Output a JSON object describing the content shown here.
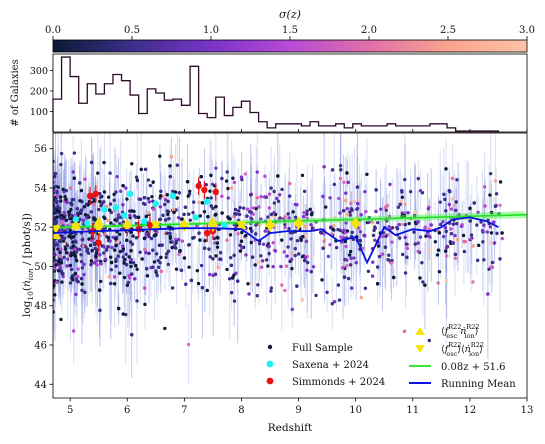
{
  "chart_data": [
    {
      "type": "colorbar",
      "label": "σ(z)",
      "range": [
        0.0,
        3.0
      ],
      "ticks": [
        0.0,
        0.5,
        1.0,
        1.5,
        2.0,
        2.5,
        3.0
      ],
      "tick_labels": [
        "0.0",
        "0.5",
        "1.0",
        "1.5",
        "2.0",
        "2.5",
        "3.0"
      ],
      "colormap": [
        "#0b1a36",
        "#3b2f8a",
        "#7a33c8",
        "#b84bd6",
        "#e06fa9",
        "#f9a48d",
        "#fcc3a8"
      ]
    },
    {
      "type": "histogram",
      "ylabel": "# of Galaxies",
      "yticks": [
        100,
        200,
        300
      ],
      "ylim": [
        0,
        380
      ],
      "xlim": [
        4.7,
        13.0
      ],
      "bin_width": 0.15,
      "x_start": 4.7,
      "counts": [
        160,
        365,
        270,
        140,
        235,
        185,
        235,
        280,
        250,
        180,
        90,
        210,
        190,
        155,
        160,
        130,
        320,
        90,
        70,
        170,
        80,
        120,
        150,
        95,
        50,
        20,
        40,
        40,
        40,
        30,
        50,
        30,
        30,
        40,
        20,
        40,
        30,
        30,
        30,
        40,
        30,
        30,
        30,
        30,
        40,
        40,
        20,
        5,
        5,
        5,
        5,
        5
      ],
      "color": "#2b0a2a"
    },
    {
      "type": "scatter",
      "xlabel": "Redshift",
      "ylabel": "log10(ṅion / [phot/s])",
      "xlim": [
        4.7,
        13.0
      ],
      "ylim": [
        43.3,
        56.8
      ],
      "xticks": [
        5,
        6,
        7,
        8,
        9,
        10,
        11,
        12,
        13
      ],
      "yticks": [
        44,
        46,
        48,
        50,
        52,
        54,
        56
      ],
      "series": [
        {
          "name": "Full Sample",
          "marker": "dot",
          "color": "#14183a"
        },
        {
          "name": "Saxena + 2024",
          "marker": "dot",
          "color": "#1ef2f2",
          "points": [
            [
              5.1,
              52.4
            ],
            [
              5.3,
              52.2
            ],
            [
              5.6,
              52.9
            ],
            [
              5.8,
              53.0
            ],
            [
              5.95,
              52.6
            ],
            [
              6.05,
              53.7
            ],
            [
              6.3,
              52.3
            ],
            [
              6.5,
              53.2
            ],
            [
              6.8,
              53.6
            ],
            [
              7.2,
              52.5
            ],
            [
              7.4,
              53.3
            ],
            [
              7.7,
              52.1
            ]
          ]
        },
        {
          "name": "Simmonds + 2024",
          "marker": "dot",
          "color": "#ee1111",
          "points": [
            [
              5.35,
              53.6
            ],
            [
              5.45,
              53.7
            ],
            [
              5.4,
              51.8
            ],
            [
              5.5,
              51.2
            ],
            [
              6.0,
              52.0
            ],
            [
              6.2,
              51.9
            ],
            [
              6.4,
              52.1
            ],
            [
              7.25,
              54.1
            ],
            [
              7.35,
              53.9
            ],
            [
              7.4,
              51.7
            ],
            [
              7.5,
              51.8
            ],
            [
              7.55,
              53.8
            ]
          ]
        },
        {
          "name": "⟨fescR22 ṅionR22⟩",
          "marker": "triangle-up",
          "color": "#f4e40c",
          "points": [
            [
              4.75,
              51.6
            ],
            [
              5.1,
              52.1
            ],
            [
              5.5,
              52.3
            ],
            [
              6.0,
              52.2
            ],
            [
              6.5,
              52.1
            ],
            [
              7.0,
              52.2
            ],
            [
              7.5,
              52.3
            ],
            [
              8.0,
              52.1
            ],
            [
              8.5,
              52.2
            ],
            [
              9.0,
              52.3
            ],
            [
              10.0,
              52.3
            ]
          ]
        },
        {
          "name": "⟨fescR22⟩⟨ṅionR22⟩",
          "marker": "triangle-down",
          "color": "#f4e40c",
          "points": [
            [
              4.75,
              51.9
            ],
            [
              5.1,
              52.0
            ],
            [
              5.5,
              51.9
            ],
            [
              6.0,
              52.0
            ],
            [
              6.5,
              52.1
            ],
            [
              7.0,
              52.0
            ],
            [
              7.5,
              52.0
            ],
            [
              8.0,
              52.1
            ],
            [
              8.5,
              52.0
            ],
            [
              9.0,
              52.1
            ],
            [
              10.0,
              52.1
            ]
          ]
        },
        {
          "name": "0.08z + 51.6",
          "type": "line",
          "color": "#22e022",
          "slope": 0.08,
          "intercept": 51.6
        },
        {
          "name": "Running Mean",
          "type": "line",
          "color": "#0a12e0",
          "points": [
            [
              4.7,
              51.7
            ],
            [
              5.0,
              51.75
            ],
            [
              5.5,
              51.8
            ],
            [
              6.0,
              51.85
            ],
            [
              6.5,
              51.9
            ],
            [
              7.0,
              51.95
            ],
            [
              7.5,
              51.95
            ],
            [
              8.0,
              51.9
            ],
            [
              8.3,
              51.3
            ],
            [
              8.5,
              51.7
            ],
            [
              8.8,
              51.8
            ],
            [
              9.2,
              51.8
            ],
            [
              9.4,
              51.9
            ],
            [
              9.7,
              51.3
            ],
            [
              10.0,
              51.5
            ],
            [
              10.2,
              50.2
            ],
            [
              10.5,
              52.0
            ],
            [
              10.7,
              51.6
            ],
            [
              11.0,
              51.9
            ],
            [
              11.3,
              51.8
            ],
            [
              11.5,
              52.0
            ],
            [
              11.7,
              52.4
            ],
            [
              12.0,
              52.5
            ],
            [
              12.3,
              52.3
            ],
            [
              12.5,
              52.0
            ]
          ]
        }
      ],
      "legend_position": "bottom-right"
    }
  ]
}
